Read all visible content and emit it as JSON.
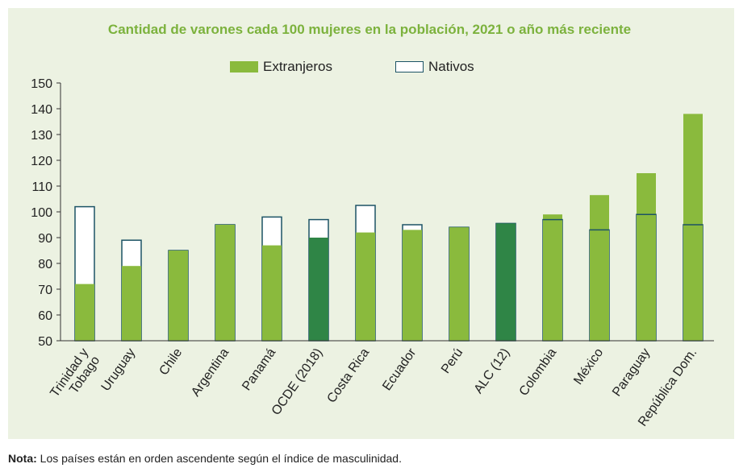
{
  "chart_data": {
    "type": "bar",
    "title": "Cantidad de varones cada 100 mujeres en la población, 2021 o año más reciente",
    "legend": [
      {
        "name": "Extranjeros",
        "color": "#8aba3d"
      },
      {
        "name": "Nativos",
        "color": "#ffffff",
        "border": "#1c5365"
      }
    ],
    "categories": [
      "Trinidad y Tobago",
      "Uruguay",
      "Chile",
      "Argentina",
      "Panamá",
      "OCDE (2018)",
      "Costa Rica",
      "Ecuador",
      "Perú",
      "ALC (12)",
      "Colombia",
      "México",
      "Paraguay",
      "República Dom."
    ],
    "series": [
      {
        "name": "Extranjeros",
        "values": [
          72,
          79,
          85,
          95,
          87,
          90,
          92,
          93,
          94,
          95.5,
          99,
          106.5,
          115,
          138
        ]
      },
      {
        "name": "Nativos",
        "values": [
          102,
          89,
          85,
          95,
          98,
          97,
          102.5,
          95,
          94,
          95.5,
          97,
          93,
          99,
          95
        ]
      }
    ],
    "highlight_categories": [
      "OCDE (2018)",
      "ALC (12)"
    ],
    "highlight_color": "#2f8546",
    "ylim": [
      50,
      150
    ],
    "yticks": [
      "150",
      "140",
      "130",
      "120",
      "110",
      "100",
      "90",
      "80",
      "70",
      "60",
      "50"
    ],
    "xlabel": "",
    "ylabel": ""
  },
  "note": {
    "label": "Nota:",
    "text": " Los países están en orden ascendente según el índice de masculinidad."
  }
}
